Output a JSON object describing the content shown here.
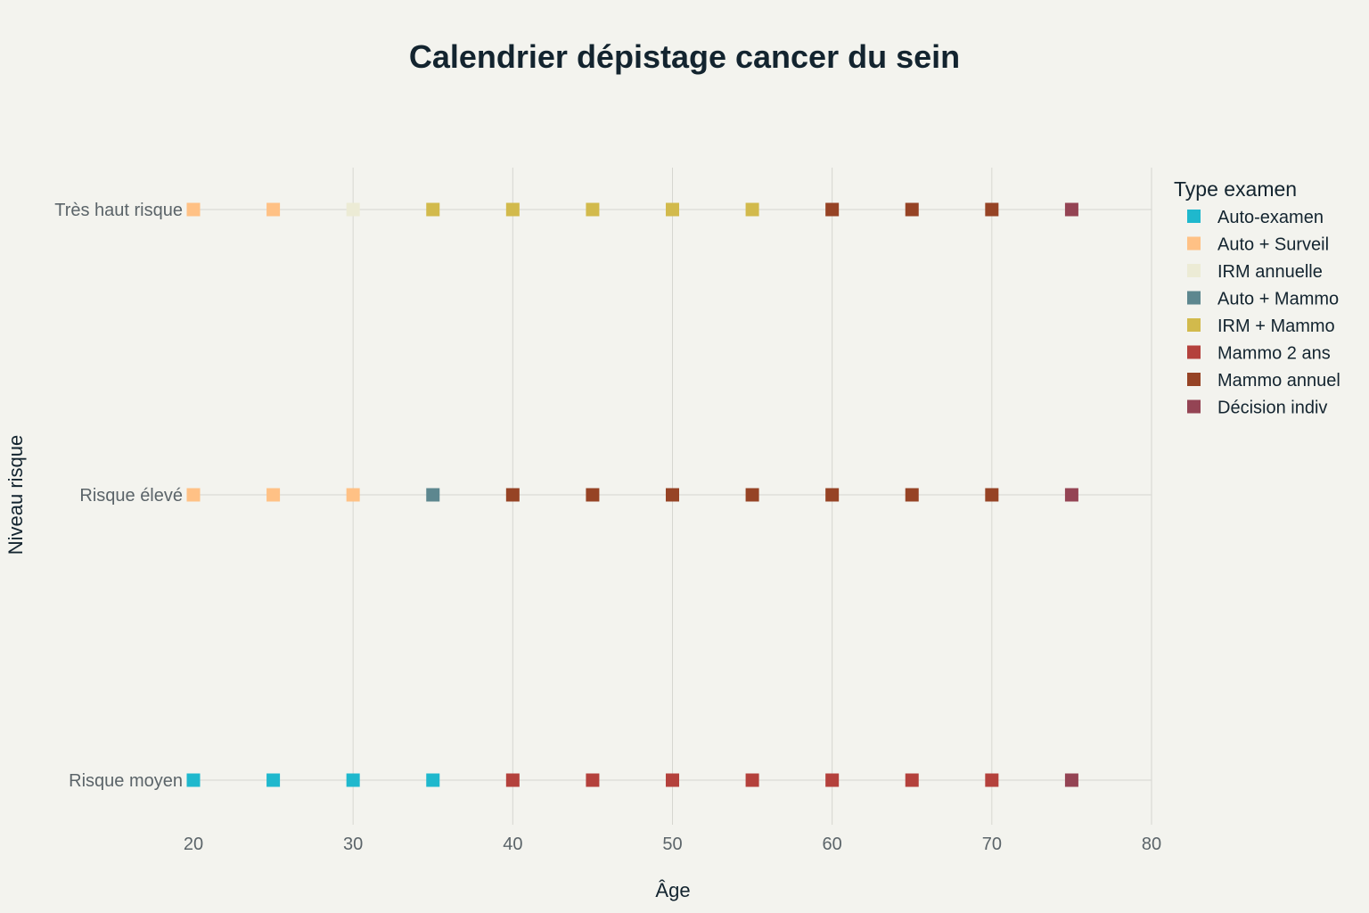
{
  "chart_data": {
    "type": "scatter",
    "title": "Calendrier dépistage cancer du sein",
    "xlabel": "Âge",
    "ylabel": "Niveau risque",
    "xlim": [
      20,
      80
    ],
    "x_ticks": [
      20,
      30,
      40,
      50,
      60,
      70,
      80
    ],
    "categories": [
      "Risque moyen",
      "Risque élevé",
      "Très haut risque"
    ],
    "legend_title": "Type examen",
    "legend_position": "top-right",
    "grid": true,
    "series": [
      {
        "name": "Auto-examen",
        "color": "#1fb8cd",
        "points": [
          {
            "x": 20,
            "y": "Risque moyen"
          },
          {
            "x": 25,
            "y": "Risque moyen"
          },
          {
            "x": 30,
            "y": "Risque moyen"
          },
          {
            "x": 35,
            "y": "Risque moyen"
          }
        ]
      },
      {
        "name": "Auto + Surveil",
        "color": "#ffc185",
        "points": [
          {
            "x": 20,
            "y": "Risque élevé"
          },
          {
            "x": 25,
            "y": "Risque élevé"
          },
          {
            "x": 30,
            "y": "Risque élevé"
          },
          {
            "x": 20,
            "y": "Très haut risque"
          },
          {
            "x": 25,
            "y": "Très haut risque"
          }
        ]
      },
      {
        "name": "IRM annuelle",
        "color": "#ecebd5",
        "points": [
          {
            "x": 30,
            "y": "Très haut risque"
          }
        ]
      },
      {
        "name": "Auto + Mammo",
        "color": "#5d878f",
        "points": [
          {
            "x": 35,
            "y": "Risque élevé"
          }
        ]
      },
      {
        "name": "IRM + Mammo",
        "color": "#d2ba4c",
        "points": [
          {
            "x": 35,
            "y": "Très haut risque"
          },
          {
            "x": 40,
            "y": "Très haut risque"
          },
          {
            "x": 45,
            "y": "Très haut risque"
          },
          {
            "x": 50,
            "y": "Très haut risque"
          },
          {
            "x": 55,
            "y": "Très haut risque"
          }
        ]
      },
      {
        "name": "Mammo 2 ans",
        "color": "#b4413c",
        "points": [
          {
            "x": 40,
            "y": "Risque moyen"
          },
          {
            "x": 45,
            "y": "Risque moyen"
          },
          {
            "x": 50,
            "y": "Risque moyen"
          },
          {
            "x": 55,
            "y": "Risque moyen"
          },
          {
            "x": 60,
            "y": "Risque moyen"
          },
          {
            "x": 65,
            "y": "Risque moyen"
          },
          {
            "x": 70,
            "y": "Risque moyen"
          }
        ]
      },
      {
        "name": "Mammo annuel",
        "color": "#944454",
        "points": []
      },
      {
        "name": "Mammo annuel",
        "color": "#964325",
        "points": [
          {
            "x": 40,
            "y": "Risque élevé"
          },
          {
            "x": 45,
            "y": "Risque élevé"
          },
          {
            "x": 50,
            "y": "Risque élevé"
          },
          {
            "x": 55,
            "y": "Risque élevé"
          },
          {
            "x": 60,
            "y": "Risque élevé"
          },
          {
            "x": 65,
            "y": "Risque élevé"
          },
          {
            "x": 70,
            "y": "Risque élevé"
          },
          {
            "x": 60,
            "y": "Très haut risque"
          },
          {
            "x": 65,
            "y": "Très haut risque"
          },
          {
            "x": 70,
            "y": "Très haut risque"
          }
        ]
      },
      {
        "name": "Décision indiv",
        "color": "#944454",
        "points": [
          {
            "x": 75,
            "y": "Risque moyen"
          },
          {
            "x": 75,
            "y": "Risque élevé"
          },
          {
            "x": 75,
            "y": "Très haut risque"
          }
        ]
      }
    ]
  }
}
